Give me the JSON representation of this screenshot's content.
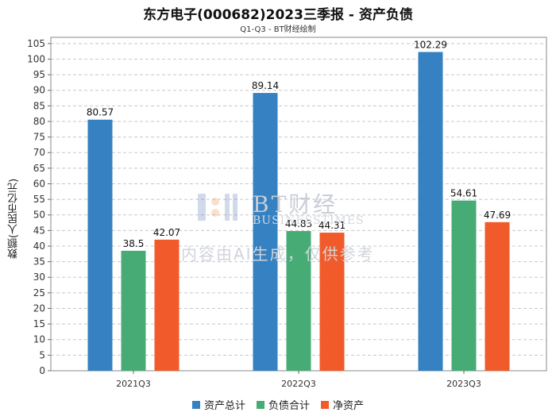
{
  "chart_data": {
    "type": "bar",
    "title": "东方电子(000682)2023三季报 - 资产负债",
    "subtitle": "Q1-Q3 - BT财经绘制",
    "ylabel": "数额(人民币亿元)",
    "xlabel": "",
    "categories": [
      "2021Q3",
      "2022Q3",
      "2023Q3"
    ],
    "ylim": [
      0,
      107
    ],
    "yticks": [
      0,
      5,
      10,
      15,
      20,
      25,
      30,
      35,
      40,
      45,
      50,
      55,
      60,
      65,
      70,
      75,
      80,
      85,
      90,
      95,
      100,
      105
    ],
    "grid": true,
    "legend_position": "bottom",
    "series": [
      {
        "name": "资产总计",
        "color": "#3681c2",
        "values": [
          80.57,
          89.14,
          102.29
        ],
        "labels": [
          "80.57",
          "89.14",
          "102.29"
        ]
      },
      {
        "name": "负债合计",
        "color": "#46ab74",
        "values": [
          38.5,
          44.83,
          54.61
        ],
        "labels": [
          "38.5",
          "44.83",
          "54.61"
        ]
      },
      {
        "name": "净资产",
        "color": "#f15a2a",
        "values": [
          42.07,
          44.31,
          47.69
        ],
        "labels": [
          "42.07",
          "44.31",
          "47.69"
        ]
      }
    ]
  },
  "watermark": {
    "name": "BT财经",
    "english": "BUSINESSTIMES",
    "note": "内容由AI生成，仅供参考"
  }
}
